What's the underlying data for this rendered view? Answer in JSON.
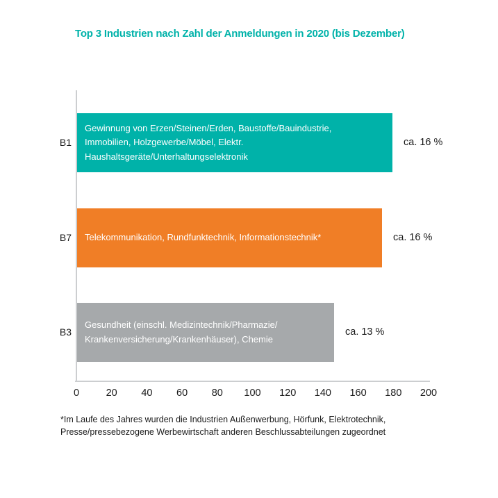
{
  "title": "Top 3 Industrien nach Zahl der Anmeldungen in 2020 (bis Dezember)",
  "title_color": "#00b2a9",
  "chart_data": {
    "type": "bar",
    "orientation": "horizontal",
    "title": "Top 3 Industrien nach Zahl der Anmeldungen in 2020 (bis Dezember)",
    "categories": [
      "B1",
      "B7",
      "B3"
    ],
    "values": [
      179,
      173,
      146
    ],
    "value_labels": [
      "ca. 16 %",
      "ca. 16 %",
      "ca. 13 %"
    ],
    "bar_label_lines": [
      [
        "Gewinnung von Erzen/Steinen/Erden, Baustoffe/Bauindustrie,",
        "Immobilien, Holzgewerbe/Möbel, Elektr.",
        "Haushaltsgeräte/Unterhaltungselektronik"
      ],
      [
        "Telekommunikation, Rundfunktechnik, Informationstechnik*"
      ],
      [
        "Gesundheit (einschl. Medizintechnik/Pharmazie/",
        "Krankenversicherung/Krankenhäuser), Chemie"
      ]
    ],
    "bar_labels_full": [
      "Gewinnung von Erzen/Steinen/Erden, Baustoffe/Bauindustrie, Immobilien, Holzgewerbe/Möbel, Elektr. Haushaltsgeräte/Unterhaltungselektronik",
      "Telekommunikation, Rundfunktechnik, Informationstechnik*",
      "Gesundheit (einschl. Medizintechnik/Pharmazie/Krankenversicherung/Krankenhäuser), Chemie"
    ],
    "bar_colors": [
      "#00b2a9",
      "#f07e26",
      "#a6a9ab"
    ],
    "xlim": [
      0,
      200
    ],
    "x_ticks": [
      0,
      20,
      40,
      60,
      80,
      100,
      120,
      140,
      160,
      180,
      200
    ],
    "grid": false,
    "legend": "none",
    "axis_color": "#ccced0"
  },
  "footnote_lines": [
    "*Im Laufe des Jahres wurden die Industrien Außenwerbung, Hörfunk, Elektrotechnik,",
    "Presse/pressebezogene Werbewirtschaft anderen Beschlussabteilungen zugeordnet"
  ]
}
